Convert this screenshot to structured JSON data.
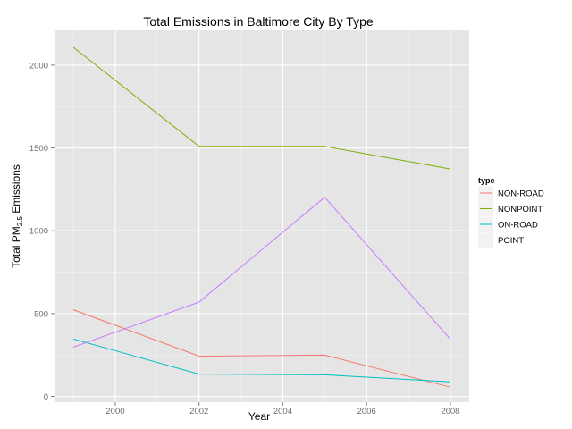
{
  "chart_data": {
    "type": "line",
    "title": "Total Emissions in Baltimore City By Type",
    "xlabel": "Year",
    "ylabel_parts": {
      "main": "Total PM",
      "sub": "2.5",
      "suffix": " Emissions"
    },
    "x": [
      1999,
      2002,
      2005,
      2008
    ],
    "xlim": [
      1998.55,
      2008.45
    ],
    "ylim": [
      -35,
      2210
    ],
    "x_ticks": [
      2000,
      2002,
      2004,
      2006,
      2008
    ],
    "x_minor": [
      1999,
      2001,
      2003,
      2005,
      2007
    ],
    "y_ticks": [
      0,
      500,
      1000,
      1500,
      2000
    ],
    "y_minor": [
      250,
      750,
      1250,
      1750
    ],
    "grid": true,
    "panel_background": "#e5e5e5",
    "legend_title": "type",
    "legend_position": "right",
    "series": [
      {
        "name": "NON-ROAD",
        "color": "#F8766D",
        "values": [
          522.9,
          242.7,
          248.9,
          55.8
        ]
      },
      {
        "name": "NONPOINT",
        "color": "#7CAE00",
        "values": [
          2107.6,
          1509.5,
          1509.5,
          1373.2
        ]
      },
      {
        "name": "ON-ROAD",
        "color": "#00BFC4",
        "values": [
          346.8,
          134.3,
          130.4,
          88.3
        ]
      },
      {
        "name": "POINT",
        "color": "#C77CFF",
        "values": [
          296.8,
          569.3,
          1202.5,
          344.98
        ]
      }
    ]
  }
}
